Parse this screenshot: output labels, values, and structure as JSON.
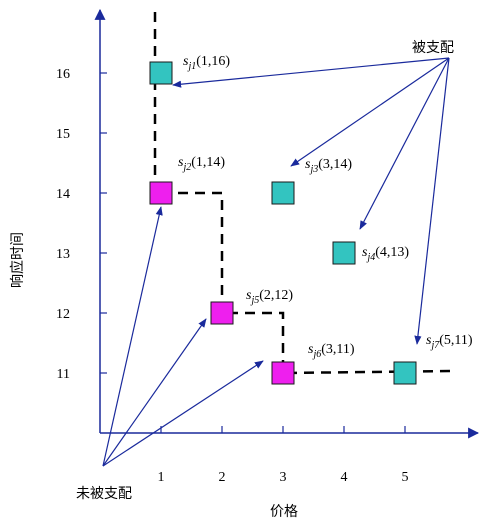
{
  "chart_data": {
    "type": "scatter",
    "xlabel": "价格",
    "ylabel": "响应时间",
    "x_ticks": [
      1,
      2,
      3,
      4,
      5
    ],
    "y_ticks": [
      11,
      12,
      13,
      14,
      15,
      16
    ],
    "xlim": [
      0,
      6
    ],
    "ylim": [
      10,
      17
    ],
    "grid": false,
    "points": [
      {
        "sym": "s",
        "sub": "j1",
        "coords": "(1,16)",
        "x": 1,
        "y": 16,
        "dominated": true
      },
      {
        "sym": "s",
        "sub": "j2",
        "coords": "(1,14)",
        "x": 1,
        "y": 14,
        "dominated": false
      },
      {
        "sym": "s",
        "sub": "j3",
        "coords": "(3,14)",
        "x": 3,
        "y": 14,
        "dominated": true
      },
      {
        "sym": "s",
        "sub": "j4",
        "coords": "(4,13)",
        "x": 4,
        "y": 13,
        "dominated": true
      },
      {
        "sym": "s",
        "sub": "j5",
        "coords": "(2,12)",
        "x": 2,
        "y": 12,
        "dominated": false
      },
      {
        "sym": "s",
        "sub": "j6",
        "coords": "(3,11)",
        "x": 3,
        "y": 11,
        "dominated": false
      },
      {
        "sym": "s",
        "sub": "j7",
        "coords": "(5,11)",
        "x": 5,
        "y": 11,
        "dominated": true
      }
    ],
    "annotations": {
      "dominated": "被支配",
      "non_dominated": "未被支配"
    },
    "colors": {
      "dominated": "#33c4c0",
      "non_dominated": "#ee1fee",
      "arrow": "#1a2a9c",
      "frontier": "#000000",
      "axis": "#1a2a9c"
    }
  }
}
